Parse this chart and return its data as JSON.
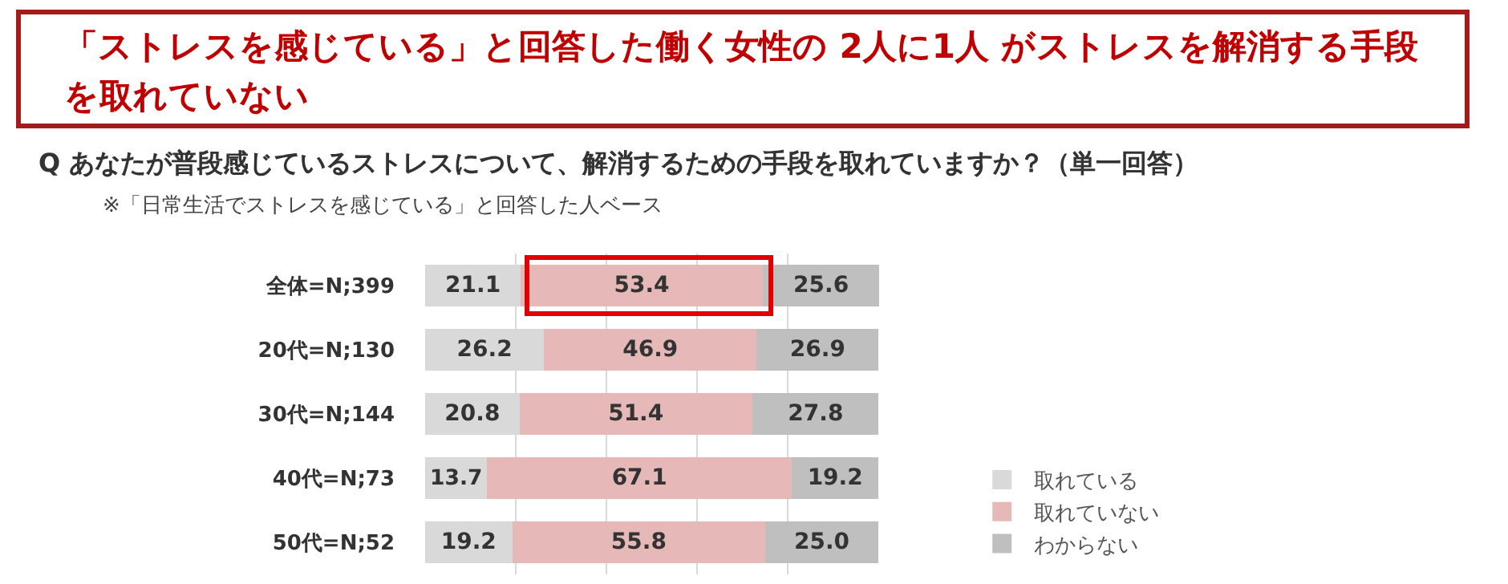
{
  "chart_data": {
    "type": "bar",
    "orientation": "horizontal",
    "stacked": true,
    "title": "「ストレスを感じている」と回答した働く女性の 2人に1人 がストレスを解消する手段を取れていない",
    "subtitle": "Q あなたが普段感じているストレスについて、解消するための手段を取れていますか？（単一回答）",
    "annotations": [
      "※「日常生活でストレスを感じている」と回答した人ベース"
    ],
    "categories": [
      "全体=N;399",
      "20代=N;130",
      "30代=N;144",
      "40代=N;73",
      "50代=N;52"
    ],
    "series": [
      {
        "name": "取れている",
        "color": "#d9d9d9",
        "values": [
          21.1,
          26.2,
          20.8,
          13.7,
          19.2
        ],
        "value_labels": [
          "21.1",
          "26.2",
          "20.8",
          "13.7",
          "19.2"
        ]
      },
      {
        "name": "取れていない",
        "color": "#e6b9b8",
        "values": [
          53.4,
          46.9,
          51.4,
          67.1,
          55.8
        ],
        "value_labels": [
          "53.4",
          "46.9",
          "51.4",
          "67.1",
          "55.8"
        ]
      },
      {
        "name": "わからない",
        "color": "#bfbfbf",
        "values": [
          25.6,
          26.9,
          27.8,
          19.2,
          25.0
        ],
        "value_labels": [
          "25.6",
          "26.9",
          "27.8",
          "19.2",
          "25.0"
        ]
      }
    ],
    "xlim": [
      0,
      100.1
    ],
    "grid": "x",
    "legend": "right",
    "tick_labels": "y"
  }
}
